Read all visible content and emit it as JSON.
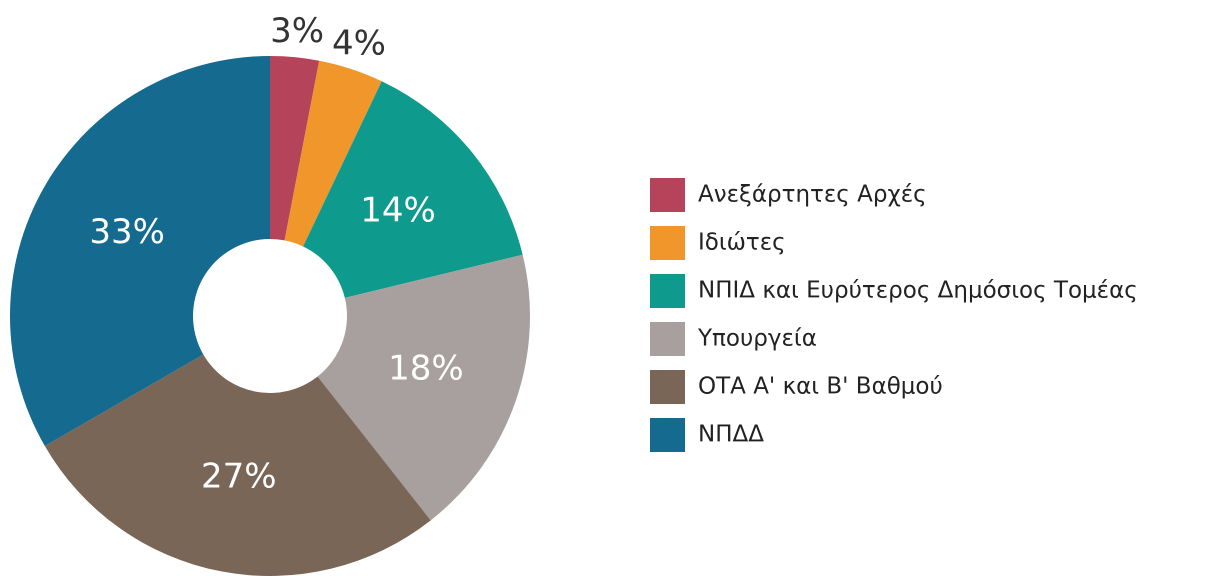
{
  "chart_data": {
    "type": "donut",
    "categories": [
      "Ανεξάρτητες Αρχές",
      "Ιδιώτες",
      "ΝΠΙΔ και Ευρύτερος Δημόσιος Τομέας",
      "Υπουργεία",
      "ΟΤΑ Α' και Β' Βαθμού",
      "ΝΠΔΔ"
    ],
    "values": [
      3,
      4,
      14,
      18,
      27,
      33
    ],
    "value_labels": [
      "3%",
      "4%",
      "14%",
      "18%",
      "27%",
      "33%"
    ],
    "colors": [
      "#b5435a",
      "#f0962a",
      "#0f9a8e",
      "#a8a09e",
      "#7a6656",
      "#146a8f"
    ],
    "legend": "right"
  }
}
